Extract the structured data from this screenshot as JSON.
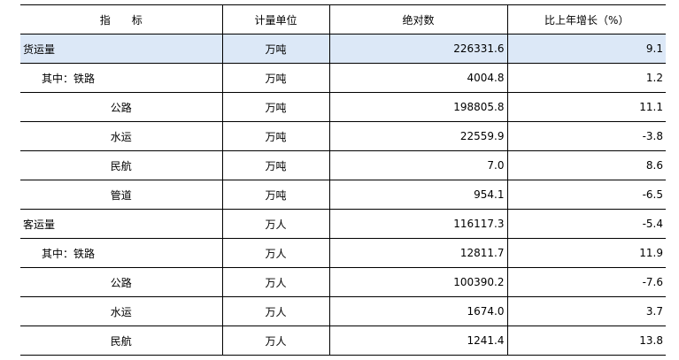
{
  "headers": {
    "indicator": "指　　标",
    "unit": "计量单位",
    "absolute": "绝对数",
    "growth": "比上年增长（%）"
  },
  "highlight_color": "#dce8f7",
  "rows": [
    {
      "indicator": "货运量",
      "unit": "万吨",
      "absolute": "226331.6",
      "growth": "9.1",
      "level": 0
    },
    {
      "indicator": "其中：铁路",
      "unit": "万吨",
      "absolute": "4004.8",
      "growth": "1.2",
      "level": 1
    },
    {
      "indicator": "公路",
      "unit": "万吨",
      "absolute": "198805.8",
      "growth": "11.1",
      "level": 2
    },
    {
      "indicator": "水运",
      "unit": "万吨",
      "absolute": "22559.9",
      "growth": "-3.8",
      "level": 2
    },
    {
      "indicator": "民航",
      "unit": "万吨",
      "absolute": "7.0",
      "growth": "8.6",
      "level": 2
    },
    {
      "indicator": "管道",
      "unit": "万吨",
      "absolute": "954.1",
      "growth": "-6.5",
      "level": 2
    },
    {
      "indicator": "客运量",
      "unit": "万人",
      "absolute": "116117.3",
      "growth": "-5.4",
      "level": 0
    },
    {
      "indicator": "其中：铁路",
      "unit": "万人",
      "absolute": "12811.7",
      "growth": "11.9",
      "level": 1
    },
    {
      "indicator": "公路",
      "unit": "万人",
      "absolute": "100390.2",
      "growth": "-7.6",
      "level": 2
    },
    {
      "indicator": "水运",
      "unit": "万人",
      "absolute": "1674.0",
      "growth": "3.7",
      "level": 2
    },
    {
      "indicator": "民航",
      "unit": "万人",
      "absolute": "1241.4",
      "growth": "13.8",
      "level": 2
    }
  ]
}
